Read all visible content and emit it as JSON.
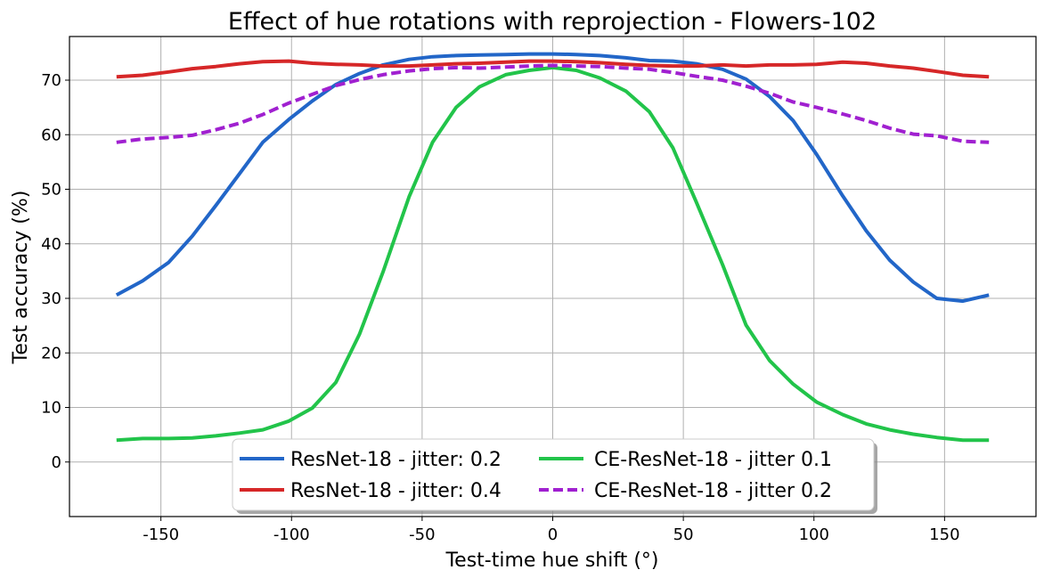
{
  "chart_data": {
    "type": "line",
    "title": "Effect of hue rotations with reprojection - Flowers-102",
    "xlabel": "Test-time hue shift (°)",
    "ylabel": "Test accuracy (%)",
    "xlim": [
      -185,
      185
    ],
    "ylim": [
      -10,
      78
    ],
    "xticks": [
      -150,
      -100,
      -50,
      0,
      50,
      100,
      150
    ],
    "xtick_labels": [
      "-150",
      "-100",
      "-50",
      "0",
      "50",
      "100",
      "150"
    ],
    "yticks": [
      0,
      10,
      20,
      30,
      40,
      50,
      60,
      70
    ],
    "ytick_labels": [
      "0",
      "10",
      "20",
      "30",
      "40",
      "50",
      "60",
      "70"
    ],
    "grid": true,
    "legend_position": "bottom-center",
    "x": [
      -167,
      -157,
      -147,
      -138,
      -129,
      -120,
      -111,
      -101,
      -92,
      -83,
      -74,
      -65,
      -55,
      -46,
      -37,
      -28,
      -18,
      -9,
      0,
      9,
      18,
      28,
      37,
      46,
      55,
      65,
      74,
      83,
      92,
      101,
      111,
      120,
      129,
      138,
      147,
      157,
      167
    ],
    "series": [
      {
        "name": "ResNet-18 - jitter: 0.2",
        "color": "#2266c8",
        "dash": "solid",
        "values": [
          30.6,
          33.2,
          36.6,
          41.4,
          47.0,
          52.8,
          58.6,
          62.8,
          66.2,
          69.2,
          71.2,
          72.8,
          73.8,
          74.3,
          74.5,
          74.6,
          74.7,
          74.8,
          74.8,
          74.7,
          74.5,
          74.1,
          73.6,
          73.5,
          73.0,
          72.0,
          70.2,
          67.0,
          62.6,
          56.4,
          48.8,
          42.4,
          37.0,
          33.0,
          30.0,
          29.5,
          30.6
        ]
      },
      {
        "name": "ResNet-18 - jitter: 0.4",
        "color": "#d62728",
        "dash": "solid",
        "values": [
          70.6,
          70.9,
          71.5,
          72.1,
          72.5,
          73.0,
          73.4,
          73.5,
          73.1,
          72.9,
          72.8,
          72.6,
          72.6,
          72.8,
          73.0,
          73.1,
          73.3,
          73.5,
          73.5,
          73.4,
          73.2,
          72.9,
          72.7,
          72.6,
          72.6,
          72.8,
          72.6,
          72.8,
          72.8,
          72.9,
          73.3,
          73.1,
          72.6,
          72.2,
          71.6,
          70.9,
          70.6
        ]
      },
      {
        "name": "CE-ResNet-18 - jitter 0.1",
        "color": "#22c44a",
        "dash": "solid",
        "values": [
          4.0,
          4.3,
          4.3,
          4.4,
          4.8,
          5.3,
          5.9,
          7.5,
          9.9,
          14.6,
          23.4,
          34.8,
          48.6,
          58.6,
          65.0,
          68.8,
          71.0,
          71.8,
          72.3,
          71.8,
          70.4,
          68.0,
          64.2,
          57.6,
          47.6,
          36.2,
          25.1,
          18.6,
          14.3,
          11.0,
          8.7,
          7.0,
          5.9,
          5.1,
          4.5,
          4.0,
          4.0
        ]
      },
      {
        "name": "CE-ResNet-18 - jitter 0.2",
        "color": "#a020d0",
        "dash": "dashed",
        "values": [
          58.6,
          59.2,
          59.5,
          59.9,
          60.9,
          62.1,
          63.7,
          65.8,
          67.4,
          69.0,
          70.1,
          71.0,
          71.7,
          72.1,
          72.3,
          72.2,
          72.4,
          72.6,
          72.7,
          72.6,
          72.5,
          72.2,
          72.0,
          71.4,
          70.7,
          70.0,
          68.9,
          67.6,
          66.0,
          65.0,
          63.8,
          62.6,
          61.2,
          60.1,
          59.8,
          58.8,
          58.6
        ]
      }
    ],
    "legend": {
      "columns": [
        [
          "ResNet-18 - jitter: 0.2",
          "ResNet-18 - jitter: 0.4"
        ],
        [
          "CE-ResNet-18 - jitter 0.1",
          "CE-ResNet-18 - jitter 0.2"
        ]
      ]
    }
  }
}
